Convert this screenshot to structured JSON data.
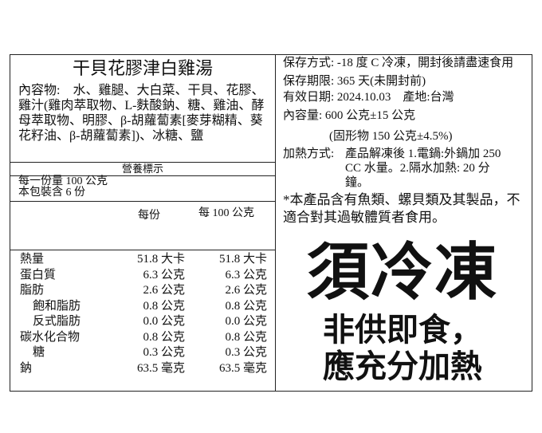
{
  "title": "干貝花膠津白雞湯",
  "ingredients": "內容物:　水、雞腿、大白菜、干貝、花膠、雞汁(雞肉萃取物、L-麩酸鈉、糖、雞油、酵母萃取物、明膠、β-胡蘿蔔素[麥芽糊精、葵花籽油、β-胡蘿蔔素])、冰糖、鹽",
  "nutrition": {
    "header": "營養標示",
    "serving_size": "每一份量 100 公克",
    "servings": "本包裝含 6 份",
    "col_per_serving": "每份",
    "col_per_100g": "每 100 公克",
    "rows": [
      {
        "name": "熱量",
        "per": "51.8 大卡",
        "per100": "51.8 大卡",
        "indent": false
      },
      {
        "name": "蛋白質",
        "per": "6.3 公克",
        "per100": "6.3 公克",
        "indent": false
      },
      {
        "name": "脂肪",
        "per": "2.6 公克",
        "per100": "2.6 公克",
        "indent": false
      },
      {
        "name": "飽和脂肪",
        "per": "0.8 公克",
        "per100": "0.8 公克",
        "indent": true
      },
      {
        "name": "反式脂肪",
        "per": "0.0 公克",
        "per100": "0.0 公克",
        "indent": true
      },
      {
        "name": "碳水化合物",
        "per": "0.8 公克",
        "per100": "0.8 公克",
        "indent": false
      },
      {
        "name": "糖",
        "per": "0.3 公克",
        "per100": "0.3 公克",
        "indent": true
      },
      {
        "name": "鈉",
        "per": "63.5 毫克",
        "per100": "63.5 毫克",
        "indent": false
      }
    ]
  },
  "info": {
    "storage": "保存方式: -18 度 C 冷凍，開封後請盡速食用",
    "shelf_life": "保存期限: 365 天(未開封前)",
    "expiry": "有效日期: 2024.10.03　產地:台灣",
    "net": "內容量: 600 公克±15 公克",
    "solids": "(固形物 150 公克±4.5%)",
    "heating_label": "加熱方式:",
    "heating": "產品解凍後 1.電鍋:外鍋加 250 CC 水量。2.隔水加熱: 20 分鐘。",
    "allergy": "*本產品含有魚類、螺貝類及其製品，不適合對其過敏體質者食用。"
  },
  "warning": {
    "frozen": "須冷凍",
    "line1": "非供即食，",
    "line2": "應充分加熱"
  }
}
